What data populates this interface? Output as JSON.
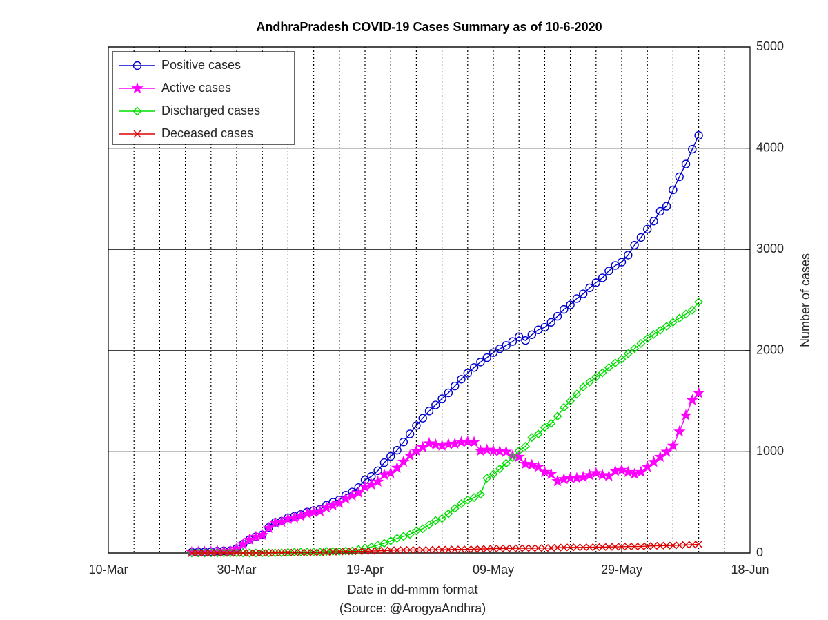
{
  "chart_data": {
    "type": "line",
    "title": "AndhraPradesh COVID-19 Cases Summary as of 10-6-2020",
    "x_label": "Date in dd-mmm format",
    "x_sublabel": "(Source: @ArogyaAndhra)",
    "y_label": "Number of cases",
    "x": [
      "23-Mar",
      "24-Mar",
      "25-Mar",
      "26-Mar",
      "27-Mar",
      "28-Mar",
      "29-Mar",
      "30-Mar",
      "31-Mar",
      "01-Apr",
      "02-Apr",
      "03-Apr",
      "04-Apr",
      "05-Apr",
      "06-Apr",
      "07-Apr",
      "08-Apr",
      "09-Apr",
      "10-Apr",
      "11-Apr",
      "12-Apr",
      "13-Apr",
      "14-Apr",
      "15-Apr",
      "16-Apr",
      "17-Apr",
      "18-Apr",
      "19-Apr",
      "20-Apr",
      "21-Apr",
      "22-Apr",
      "23-Apr",
      "24-Apr",
      "25-Apr",
      "26-Apr",
      "27-Apr",
      "28-Apr",
      "29-Apr",
      "30-Apr",
      "01-May",
      "02-May",
      "03-May",
      "04-May",
      "05-May",
      "06-May",
      "07-May",
      "08-May",
      "09-May",
      "10-May",
      "11-May",
      "12-May",
      "13-May",
      "14-May",
      "15-May",
      "16-May",
      "17-May",
      "18-May",
      "19-May",
      "20-May",
      "21-May",
      "22-May",
      "23-May",
      "24-May",
      "25-May",
      "26-May",
      "27-May",
      "28-May",
      "29-May",
      "30-May",
      "31-May",
      "01-Jun",
      "02-Jun",
      "03-Jun",
      "04-Jun",
      "05-Jun",
      "06-Jun",
      "07-Jun",
      "08-Jun",
      "09-Jun",
      "10-Jun"
    ],
    "series": [
      {
        "name": "Positive cases",
        "color": "#0000cc",
        "marker": "circle",
        "values": [
          8,
          10,
          11,
          13,
          19,
          21,
          23,
          44,
          87,
          132,
          161,
          180,
          252,
          303,
          314,
          348,
          363,
          381,
          405,
          420,
          432,
          473,
          502,
          525,
          572,
          603,
          647,
          722,
          757,
          813,
          893,
          955,
          1016,
          1097,
          1177,
          1259,
          1332,
          1403,
          1463,
          1525,
          1583,
          1650,
          1717,
          1777,
          1833,
          1887,
          1930,
          1980,
          2018,
          2051,
          2090,
          2137,
          2100,
          2157,
          2205,
          2230,
          2280,
          2339,
          2407,
          2452,
          2514,
          2561,
          2620,
          2671,
          2719,
          2787,
          2841,
          2874,
          2944,
          3042,
          3118,
          3200,
          3279,
          3377,
          3427,
          3588,
          3718,
          3843,
          3990,
          4126
        ]
      },
      {
        "name": "Active cases",
        "color": "#ff00ff",
        "marker": "star",
        "values": [
          8,
          10,
          11,
          12,
          18,
          20,
          22,
          43,
          86,
          131,
          159,
          178,
          247,
          298,
          308,
          336,
          348,
          365,
          389,
          403,
          412,
          448,
          471,
          494,
          536,
          567,
          595,
          654,
          677,
          705,
          773,
          790,
          842,
          902,
          963,
          1009,
          1045,
          1083,
          1070,
          1060,
          1075,
          1080,
          1095,
          1100,
          1095,
          1010,
          1020,
          1010,
          1005,
          1000,
          960,
          950,
          880,
          870,
          850,
          800,
          780,
          710,
          730,
          740,
          740,
          750,
          770,
          790,
          770,
          760,
          810,
          820,
          800,
          780,
          800,
          850,
          900,
          950,
          1000,
          1060,
          1200,
          1360,
          1510,
          1580
        ]
      },
      {
        "name": "Discharged cases",
        "color": "#00dd00",
        "marker": "diamond",
        "values": [
          0,
          0,
          0,
          1,
          1,
          1,
          1,
          1,
          1,
          1,
          1,
          1,
          2,
          2,
          2,
          6,
          9,
          10,
          10,
          11,
          11,
          16,
          16,
          16,
          20,
          20,
          35,
          48,
          60,
          78,
          96,
          120,
          145,
          164,
          183,
          219,
          240,
          280,
          321,
          341,
          388,
          441,
          488,
          524,
          548,
          580,
          739,
          780,
          831,
          887,
          945,
          1010,
          1054,
          1142,
          1175,
          1241,
          1280,
          1352,
          1438,
          1502,
          1570,
          1640,
          1690,
          1738,
          1780,
          1832,
          1878,
          1914,
          1970,
          2020,
          2070,
          2120,
          2160,
          2200,
          2240,
          2280,
          2320,
          2360,
          2400,
          2480
        ]
      },
      {
        "name": "Deceased cases",
        "color": "#dd0000",
        "marker": "x",
        "values": [
          0,
          0,
          0,
          0,
          0,
          0,
          0,
          0,
          0,
          0,
          1,
          1,
          1,
          3,
          3,
          4,
          6,
          6,
          6,
          6,
          7,
          9,
          11,
          14,
          15,
          16,
          16,
          17,
          20,
          22,
          24,
          27,
          29,
          31,
          31,
          31,
          31,
          31,
          33,
          33,
          34,
          36,
          36,
          36,
          38,
          41,
          41,
          44,
          45,
          46,
          46,
          47,
          48,
          48,
          49,
          49,
          50,
          53,
          55,
          56,
          56,
          56,
          57,
          58,
          59,
          60,
          61,
          62,
          64,
          64,
          64,
          68,
          71,
          73,
          73,
          75,
          77,
          80,
          82,
          86
        ]
      }
    ],
    "xlim": [
      "10-Mar",
      "18-Jun"
    ],
    "xticks": [
      "10-Mar",
      "30-Mar",
      "19-Apr",
      "09-May",
      "29-May",
      "18-Jun"
    ],
    "ylim": [
      0,
      5000
    ],
    "yticks": [
      0,
      1000,
      2000,
      3000,
      4000,
      5000
    ],
    "y_axis_side": "right",
    "grid": true,
    "legend": "upper left"
  }
}
